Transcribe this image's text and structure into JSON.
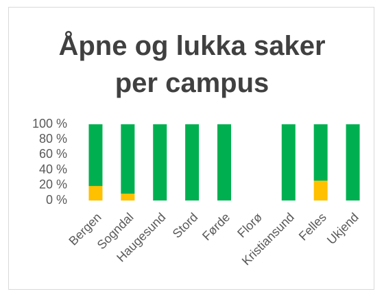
{
  "chart_data": {
    "type": "stacked_bar",
    "title": "Åpne og lukka saker per campus",
    "categories": [
      "Bergen",
      "Sogndal",
      "Haugesund",
      "Stord",
      "Førde",
      "Florø",
      "Kristiansund",
      "Felles",
      "Ukjend"
    ],
    "series": [
      {
        "color": "#ffc000",
        "values": [
          19,
          9,
          0,
          0,
          0,
          null,
          0,
          26,
          0
        ]
      },
      {
        "color": "#00b050",
        "values": [
          81,
          91,
          100,
          100,
          100,
          null,
          100,
          74,
          100
        ]
      }
    ],
    "ylim": [
      0,
      100
    ],
    "yticks": [
      {
        "value": 0,
        "label": "0 %"
      },
      {
        "value": 20,
        "label": "20 %"
      },
      {
        "value": 40,
        "label": "40 %"
      },
      {
        "value": 60,
        "label": "60 %"
      },
      {
        "value": 80,
        "label": "80 %"
      },
      {
        "value": 100,
        "label": "100 %"
      }
    ],
    "grid": false
  }
}
